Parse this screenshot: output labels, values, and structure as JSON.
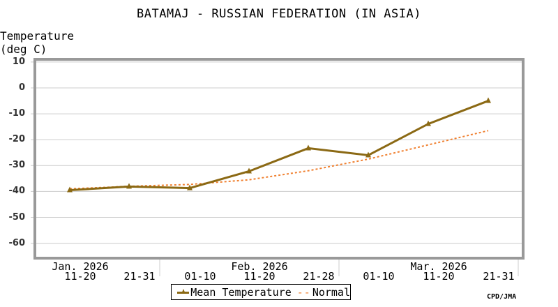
{
  "title": "BATAMAJ - RUSSIAN FEDERATION (IN ASIA)",
  "y_axis": {
    "label_line1": "Temperature",
    "label_line2": "(deg C)",
    "ticks": [
      "10",
      "0",
      "-10",
      "-20",
      "-30",
      "-40",
      "-50",
      "-60"
    ]
  },
  "x_axis": {
    "labels": [
      {
        "month": "Jan. 2026",
        "period": "11-20"
      },
      {
        "month": "",
        "period": "21-31"
      },
      {
        "month": "",
        "period": "01-10"
      },
      {
        "month": "Feb. 2026",
        "period": "11-20"
      },
      {
        "month": "",
        "period": "21-28"
      },
      {
        "month": "",
        "period": "01-10"
      },
      {
        "month": "Mar. 2026",
        "period": "11-20"
      },
      {
        "month": "",
        "period": "21-31"
      }
    ]
  },
  "legend": {
    "mean_label": "Mean Temperature",
    "normal_symbol": "--",
    "normal_label": "Normal"
  },
  "credit": "CPD/JMA",
  "colors": {
    "mean": "#8b6914",
    "normal": "#f08030",
    "grid": "#cccccc",
    "frame": "#999999"
  },
  "chart_data": {
    "type": "line",
    "title": "BATAMAJ - RUSSIAN FEDERATION (IN ASIA)",
    "xlabel": "",
    "ylabel": "Temperature (deg C)",
    "ylim": [
      -65,
      11
    ],
    "grid": true,
    "legend_position": "bottom",
    "categories": [
      "Jan 11-20",
      "Jan 21-31",
      "Feb 01-10",
      "Feb 11-20",
      "Feb 21-28",
      "Mar 01-10",
      "Mar 11-20",
      "Mar 21-31"
    ],
    "series": [
      {
        "name": "Mean Temperature",
        "values": [
          -39.5,
          -38.1,
          -38.7,
          -32.2,
          -23.3,
          -26.0,
          -13.9,
          -5.0
        ]
      },
      {
        "name": "Normal",
        "values": [
          -39.0,
          -38.0,
          -37.3,
          -35.5,
          -32.0,
          -27.5,
          -22.0,
          -16.5
        ]
      }
    ]
  }
}
